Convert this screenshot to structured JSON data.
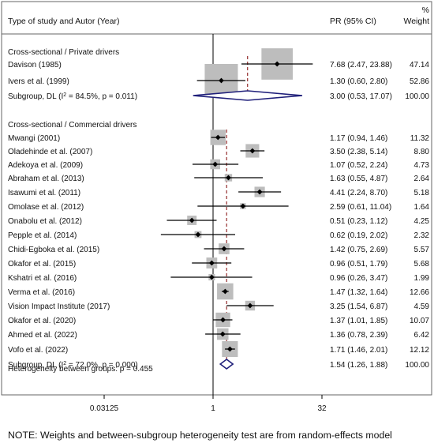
{
  "header": {
    "study_col": "Type of study and Autor (Year)",
    "pr_col": "PR (95% CI)",
    "weight_top": "%",
    "weight_col": "Weight"
  },
  "colors": {
    "frame": "#666666",
    "box": "#bdbdbd",
    "diamond": "#1f1f7a",
    "ref_line": "#8b1a1a",
    "ci_line": "#000000"
  },
  "chart_data": {
    "type": "forest",
    "scale": "log2",
    "xlim": [
      0.03125,
      64
    ],
    "xticks": [
      {
        "value": 0.03125,
        "label": "0.03125"
      },
      {
        "value": 1,
        "label": "1"
      },
      {
        "value": 32,
        "label": "32"
      }
    ],
    "groups": [
      {
        "title": "Cross-sectional / Private drivers",
        "studies": [
          {
            "name": "Davison  (1985)",
            "est": 7.68,
            "lo": 2.47,
            "hi": 23.88,
            "weight": 47.14,
            "ci_text": "7.68 (2.47, 23.88)",
            "weight_text": "47.14"
          },
          {
            "name": "Ivers et al.  (1999)",
            "est": 1.3,
            "lo": 0.6,
            "hi": 2.8,
            "weight": 52.86,
            "ci_text": "1.30 (0.60, 2.80)",
            "weight_text": "52.86"
          }
        ],
        "subgroup": {
          "label_pre": "Subgroup, DL (I",
          "label_sup": "2",
          "label_post": " = 84.5%, p = 0.011)",
          "est": 3.0,
          "lo": 0.53,
          "hi": 17.07,
          "ci_text": "3.00 (0.53, 17.07)",
          "weight_text": "100.00"
        }
      },
      {
        "title": "Cross-sectional / Commercial drivers",
        "studies": [
          {
            "name": "Mwangi  (2001)",
            "est": 1.17,
            "lo": 0.94,
            "hi": 1.46,
            "weight": 11.32,
            "ci_text": "1.17 (0.94, 1.46)",
            "weight_text": "11.32"
          },
          {
            "name": "Oladehinde et al.  (2007)",
            "est": 3.5,
            "lo": 2.38,
            "hi": 5.14,
            "weight": 8.8,
            "ci_text": "3.50 (2.38, 5.14)",
            "weight_text": "8.80"
          },
          {
            "name": "Adekoya et al.  (2009)",
            "est": 1.07,
            "lo": 0.52,
            "hi": 2.24,
            "weight": 4.73,
            "ci_text": "1.07 (0.52, 2.24)",
            "weight_text": "4.73"
          },
          {
            "name": "Abraham et al.  (2013)",
            "est": 1.63,
            "lo": 0.55,
            "hi": 4.87,
            "weight": 2.64,
            "ci_text": "1.63 (0.55, 4.87)",
            "weight_text": "2.64"
          },
          {
            "name": "Isawumi et al.  (2011)",
            "est": 4.41,
            "lo": 2.24,
            "hi": 8.7,
            "weight": 5.18,
            "ci_text": "4.41 (2.24, 8.70)",
            "weight_text": "5.18"
          },
          {
            "name": "Omolase et al.  (2012)",
            "est": 2.59,
            "lo": 0.61,
            "hi": 11.04,
            "weight": 1.64,
            "ci_text": "2.59 (0.61, 11.04)",
            "weight_text": "1.64"
          },
          {
            "name": "Onabolu et al.  (2012)",
            "est": 0.51,
            "lo": 0.23,
            "hi": 1.12,
            "weight": 4.25,
            "ci_text": "0.51 (0.23, 1.12)",
            "weight_text": "4.25"
          },
          {
            "name": "Pepple et al.  (2014)",
            "est": 0.62,
            "lo": 0.19,
            "hi": 2.02,
            "weight": 2.32,
            "ci_text": "0.62 (0.19, 2.02)",
            "weight_text": "2.32"
          },
          {
            "name": "Chidi-Egboka et al.  (2015)",
            "est": 1.42,
            "lo": 0.75,
            "hi": 2.69,
            "weight": 5.57,
            "ci_text": "1.42 (0.75, 2.69)",
            "weight_text": "5.57"
          },
          {
            "name": "Okafor et al.  (2015)",
            "est": 0.96,
            "lo": 0.51,
            "hi": 1.79,
            "weight": 5.68,
            "ci_text": "0.96 (0.51, 1.79)",
            "weight_text": "5.68"
          },
          {
            "name": "Kshatri et al.  (2016)",
            "est": 0.96,
            "lo": 0.26,
            "hi": 3.47,
            "weight": 1.99,
            "ci_text": "0.96 (0.26, 3.47)",
            "weight_text": "1.99"
          },
          {
            "name": "Verma et al.  (2016)",
            "est": 1.47,
            "lo": 1.32,
            "hi": 1.64,
            "weight": 12.66,
            "ci_text": "1.47 (1.32, 1.64)",
            "weight_text": "12.66"
          },
          {
            "name": "Vision Impact Institute  (2017)",
            "est": 3.25,
            "lo": 1.54,
            "hi": 6.87,
            "weight": 4.59,
            "ci_text": "3.25 (1.54, 6.87)",
            "weight_text": "4.59"
          },
          {
            "name": "Okafor et al.  (2020)",
            "est": 1.37,
            "lo": 1.01,
            "hi": 1.85,
            "weight": 10.07,
            "ci_text": "1.37 (1.01, 1.85)",
            "weight_text": "10.07"
          },
          {
            "name": "Ahmed et al.  (2022)",
            "est": 1.36,
            "lo": 0.78,
            "hi": 2.39,
            "weight": 6.42,
            "ci_text": "1.36 (0.78, 2.39)",
            "weight_text": "6.42"
          },
          {
            "name": "Vofo et al.  (2022)",
            "est": 1.71,
            "lo": 1.46,
            "hi": 2.01,
            "weight": 12.12,
            "ci_text": "1.71 (1.46, 2.01)",
            "weight_text": "12.12"
          }
        ],
        "subgroup": {
          "label_pre": "Subgroup, DL (I",
          "label_sup": "2",
          "label_post": " = 72.0%, p = 0.000)",
          "est": 1.54,
          "lo": 1.26,
          "hi": 1.88,
          "ci_text": "1.54 (1.26, 1.88)",
          "weight_text": "100.00"
        }
      }
    ],
    "heterogeneity": "Heterogeneity between groups: p = 0.455"
  },
  "note": "NOTE: Weights and between-subgroup heterogeneity test are from random-effects model"
}
